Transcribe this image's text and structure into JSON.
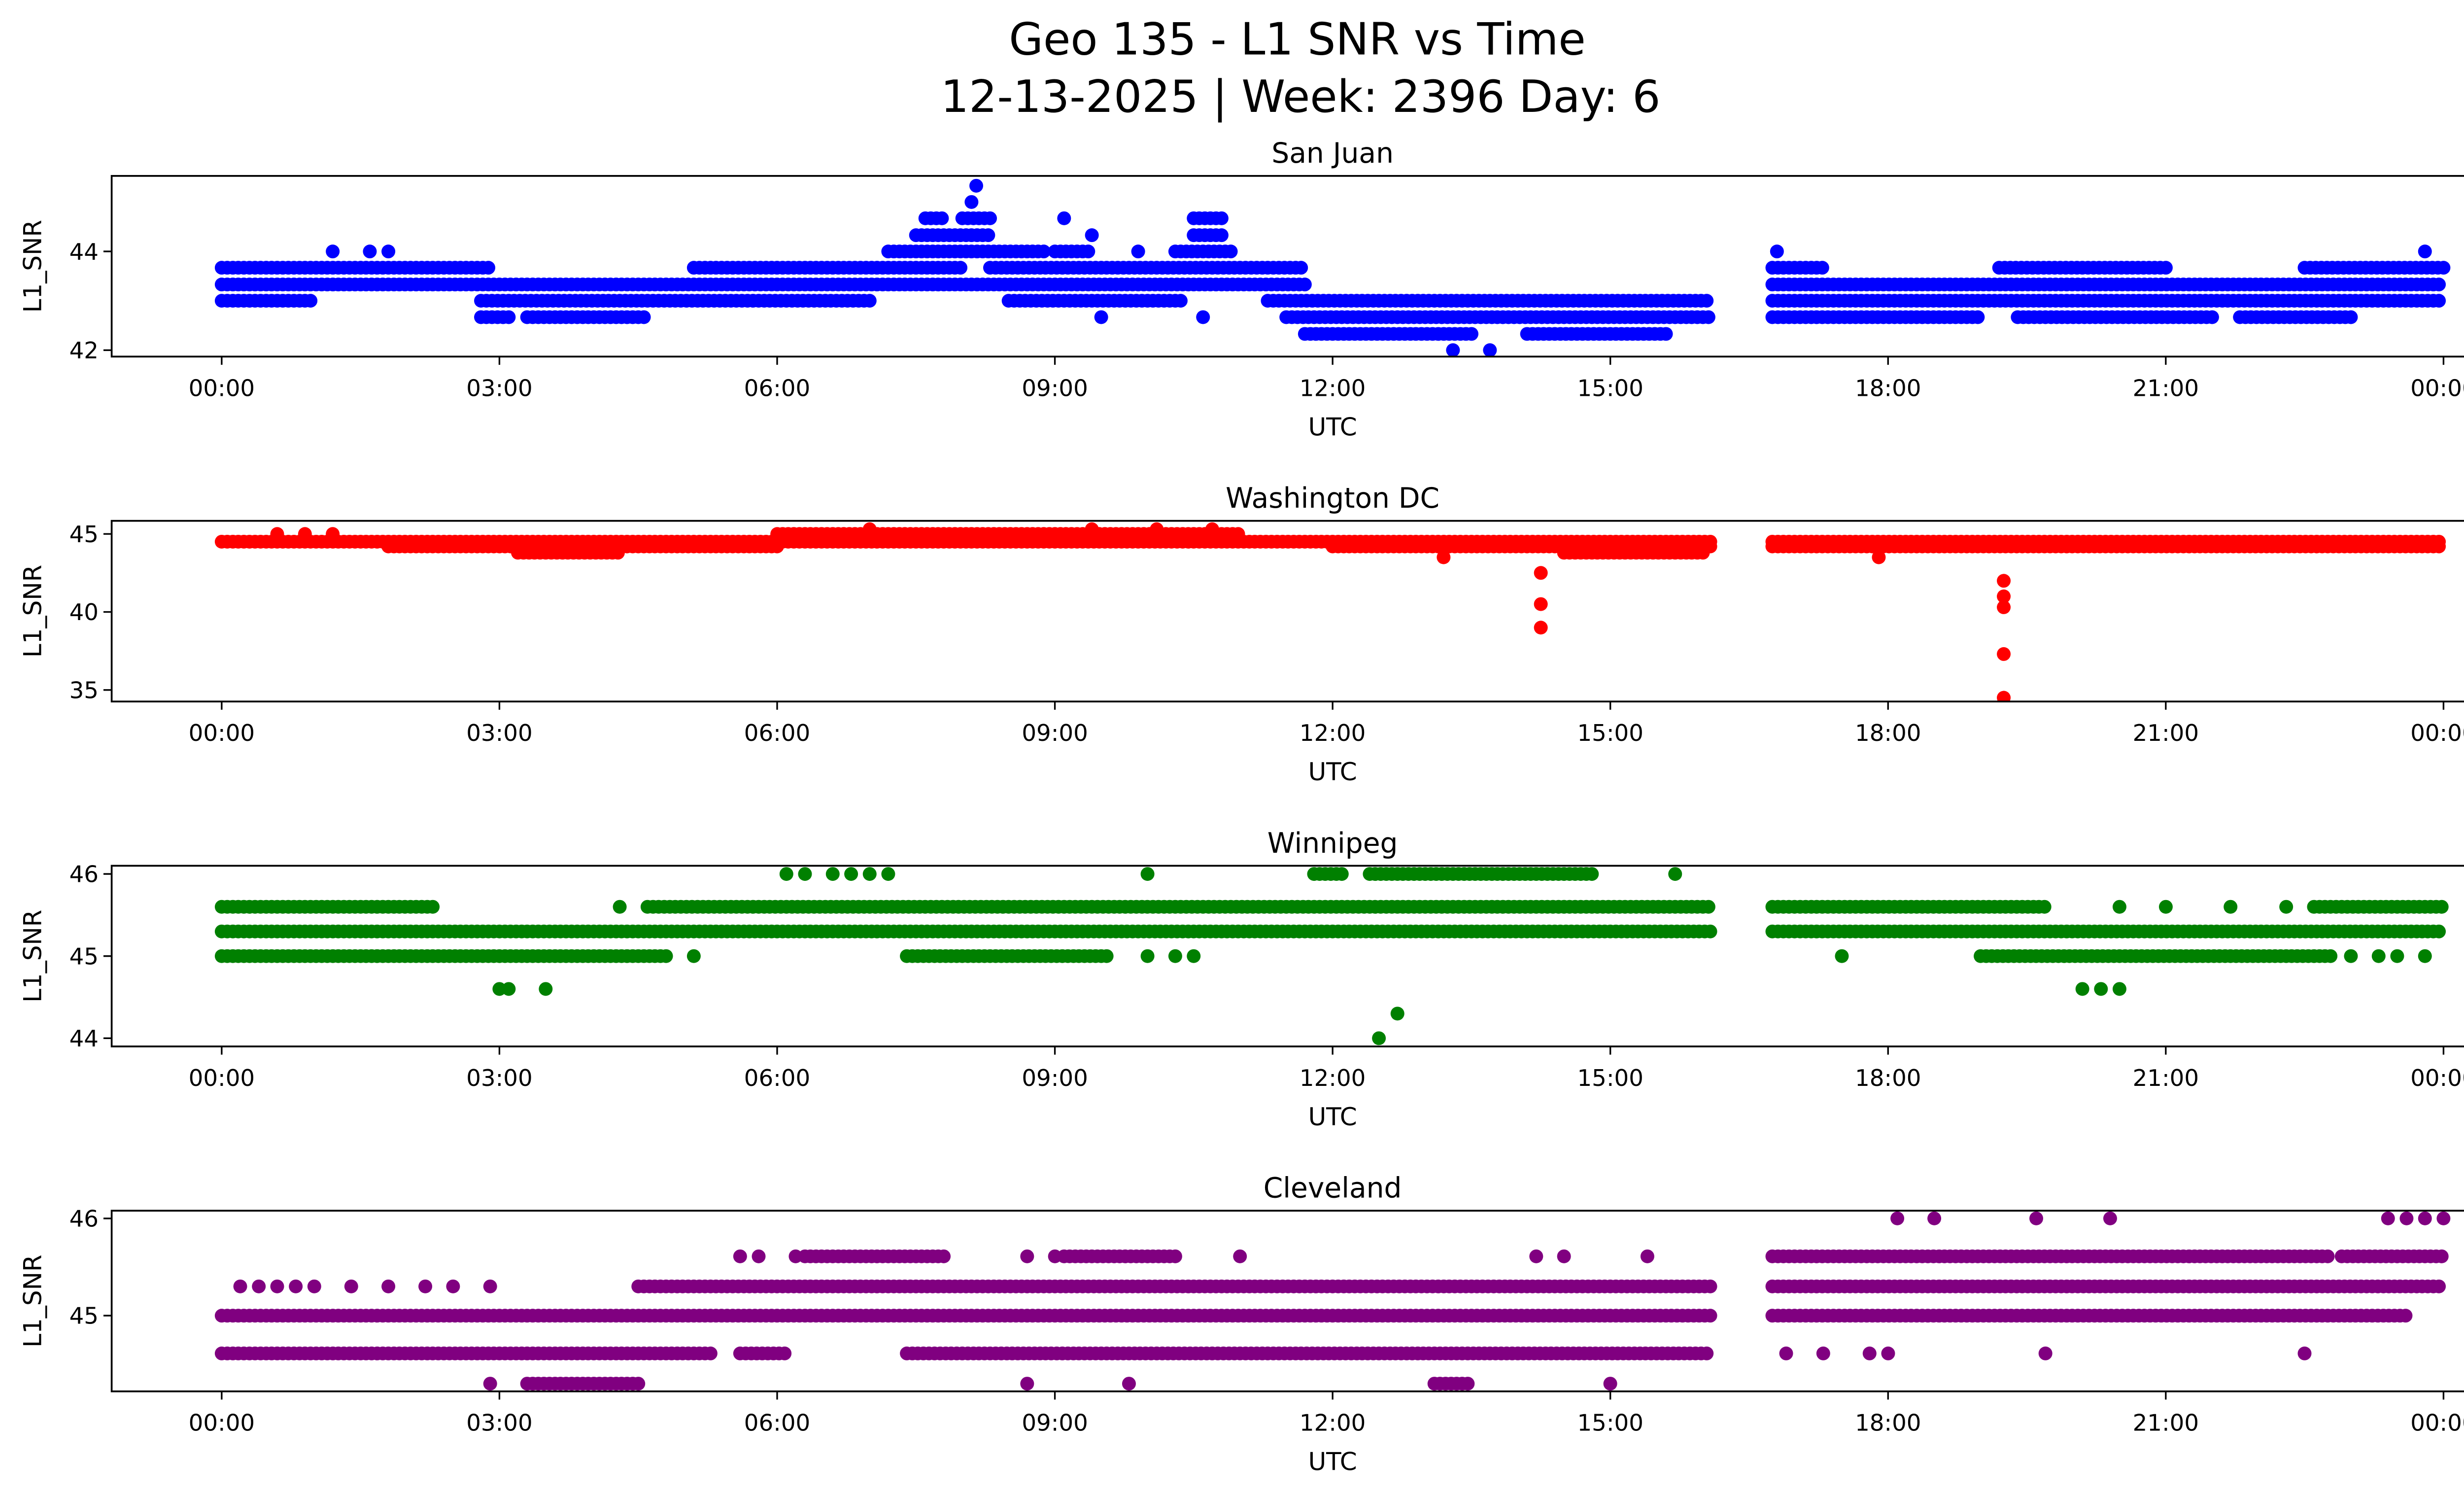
{
  "chart_data": {
    "type": "scatter",
    "title": "Geo 135 - L1 SNR vs Time",
    "subtitle": "12-13-2025 | Week: 2396 Day: 6",
    "x_ticks": [
      "00:00",
      "03:00",
      "06:00",
      "09:00",
      "12:00",
      "15:00",
      "18:00",
      "21:00",
      "00:00"
    ],
    "x_tick_hours": [
      0,
      3,
      6,
      9,
      12,
      15,
      18,
      21,
      24
    ],
    "xlim_hours": [
      -1.2,
      25.2
    ],
    "panels": [
      {
        "name": "San Juan",
        "xlabel": "UTC",
        "ylabel": "L1_SNR",
        "color": "#0000ff",
        "ylim": [
          41.87,
          45.53
        ],
        "yticks": [
          42,
          44
        ],
        "bands": [
          {
            "y": 43.67,
            "ranges": [
              [
                0,
                2.9
              ],
              [
                5.1,
                8.0
              ],
              [
                8.3,
                11.7
              ],
              [
                16.75,
                17.3
              ],
              [
                19.2,
                21
              ],
              [
                22.5,
                24
              ]
            ]
          },
          {
            "y": 43.33,
            "ranges": [
              [
                0,
                11.7
              ],
              [
                16.75,
                24
              ]
            ]
          },
          {
            "y": 43.0,
            "ranges": [
              [
                0,
                1.0
              ],
              [
                2.8,
                7.0
              ],
              [
                8.5,
                10.4
              ],
              [
                11.3,
                16.08
              ],
              [
                16.75,
                24
              ]
            ]
          },
          {
            "y": 42.67,
            "ranges": [
              [
                2.8,
                3.1
              ],
              [
                3.3,
                4.6
              ],
              [
                11.5,
                16.08
              ],
              [
                16.75,
                19
              ],
              [
                19.4,
                21.5
              ],
              [
                21.8,
                23
              ]
            ]
          },
          {
            "y": 42.33,
            "ranges": [
              [
                11.7,
                13.5
              ],
              [
                14.1,
                15.6
              ]
            ]
          },
          {
            "y": 44.0,
            "ranges": [
              [
                7.2,
                8.9
              ],
              [
                9.0,
                9.4
              ],
              [
                10.3,
                10.9
              ]
            ]
          },
          {
            "y": 44.33,
            "ranges": [
              [
                7.5,
                8.3
              ],
              [
                10.5,
                10.8
              ]
            ]
          },
          {
            "y": 44.67,
            "ranges": [
              [
                7.6,
                7.8
              ],
              [
                8.0,
                8.3
              ],
              [
                10.5,
                10.8
              ]
            ]
          }
        ],
        "points": [
          [
            1.2,
            44
          ],
          [
            1.6,
            44
          ],
          [
            1.8,
            44
          ],
          [
            9.9,
            44
          ],
          [
            9.4,
            44.33
          ],
          [
            9.1,
            44.67
          ],
          [
            8.1,
            45
          ],
          [
            8.15,
            45.33
          ],
          [
            13.3,
            42
          ],
          [
            13.7,
            42
          ],
          [
            16.8,
            44
          ],
          [
            23.8,
            44
          ],
          [
            9.5,
            42.67
          ],
          [
            10.6,
            42.67
          ]
        ]
      },
      {
        "name": "Washington DC",
        "xlabel": "UTC",
        "ylabel": "L1_SNR",
        "color": "#ff0000",
        "ylim": [
          34.26,
          45.84
        ],
        "yticks": [
          35,
          40,
          45
        ],
        "bands": [
          {
            "y": 44.5,
            "ranges": [
              [
                0,
                16.08
              ],
              [
                16.75,
                24
              ]
            ]
          },
          {
            "y": 44.2,
            "ranges": [
              [
                1.8,
                6
              ],
              [
                12,
                16.08
              ],
              [
                16.75,
                24
              ]
            ]
          },
          {
            "y": 43.8,
            "ranges": [
              [
                3.2,
                4.3
              ],
              [
                14.5,
                16
              ]
            ]
          },
          {
            "y": 45.0,
            "ranges": [
              [
                6,
                11
              ]
            ]
          }
        ],
        "points": [
          [
            0.6,
            45
          ],
          [
            0.9,
            45
          ],
          [
            1.2,
            45
          ],
          [
            7.0,
            45.3
          ],
          [
            9.4,
            45.3
          ],
          [
            10.1,
            45.3
          ],
          [
            10.7,
            45.3
          ],
          [
            14.25,
            42.5
          ],
          [
            14.25,
            40.5
          ],
          [
            14.25,
            39
          ],
          [
            19.25,
            42
          ],
          [
            19.25,
            41
          ],
          [
            19.25,
            40.3
          ],
          [
            19.25,
            37.3
          ],
          [
            19.25,
            34.5
          ],
          [
            13.2,
            43.5
          ],
          [
            17.9,
            43.5
          ]
        ]
      },
      {
        "name": "Winnipeg",
        "xlabel": "UTC",
        "ylabel": "L1_SNR",
        "color": "#008000",
        "ylim": [
          43.9,
          46.1
        ],
        "yticks": [
          44,
          45,
          46
        ],
        "bands": [
          {
            "y": 45.6,
            "ranges": [
              [
                0,
                2.3
              ],
              [
                4.6,
                16.08
              ],
              [
                16.75,
                19.7
              ],
              [
                22.6,
                24
              ]
            ]
          },
          {
            "y": 45.3,
            "ranges": [
              [
                0,
                16.08
              ],
              [
                16.75,
                24
              ]
            ]
          },
          {
            "y": 45.0,
            "ranges": [
              [
                0,
                4.8
              ],
              [
                7.4,
                9.6
              ],
              [
                19,
                22.8
              ]
            ]
          },
          {
            "y": 46.0,
            "ranges": [
              [
                11.8,
                12.1
              ],
              [
                12.4,
                14.8
              ]
            ]
          }
        ],
        "points": [
          [
            3.0,
            44.6
          ],
          [
            3.1,
            44.6
          ],
          [
            3.5,
            44.6
          ],
          [
            20.1,
            44.6
          ],
          [
            20.3,
            44.6
          ],
          [
            20.5,
            44.6
          ],
          [
            12.5,
            44
          ],
          [
            12.7,
            44.3
          ],
          [
            6.1,
            46
          ],
          [
            6.3,
            46
          ],
          [
            6.6,
            46
          ],
          [
            6.8,
            46
          ],
          [
            7.0,
            46
          ],
          [
            7.2,
            46
          ],
          [
            10.0,
            46
          ],
          [
            15.7,
            46
          ],
          [
            20.5,
            45.6
          ],
          [
            21.0,
            45.6
          ],
          [
            21.7,
            45.6
          ],
          [
            22.3,
            45.6
          ],
          [
            4.3,
            45.6
          ],
          [
            5.1,
            45
          ],
          [
            10.0,
            45
          ],
          [
            10.3,
            45
          ],
          [
            10.5,
            45
          ],
          [
            17.5,
            45
          ],
          [
            23.0,
            45
          ],
          [
            23.3,
            45
          ],
          [
            23.5,
            45
          ],
          [
            23.8,
            45
          ]
        ]
      },
      {
        "name": "Cleveland",
        "xlabel": "UTC",
        "ylabel": "L1_SNR",
        "color": "#800080",
        "ylim": [
          44.22,
          46.08
        ],
        "yticks": [
          45,
          46
        ],
        "bands": [
          {
            "y": 45.0,
            "ranges": [
              [
                0,
                16.08
              ],
              [
                16.75,
                23.6
              ]
            ]
          },
          {
            "y": 44.61,
            "ranges": [
              [
                0,
                5.3
              ],
              [
                5.6,
                6.1
              ],
              [
                7.4,
                16.08
              ]
            ]
          },
          {
            "y": 45.3,
            "ranges": [
              [
                4.5,
                16.08
              ],
              [
                16.75,
                24
              ]
            ]
          },
          {
            "y": 45.61,
            "ranges": [
              [
                6.3,
                7.8
              ],
              [
                9.1,
                10.3
              ],
              [
                16.75,
                22.8
              ],
              [
                22.9,
                24
              ]
            ]
          },
          {
            "y": 44.3,
            "ranges": [
              [
                3.3,
                4.5
              ],
              [
                13.1,
                13.5
              ]
            ]
          }
        ],
        "points": [
          [
            0.2,
            45.3
          ],
          [
            0.4,
            45.3
          ],
          [
            0.6,
            45.3
          ],
          [
            0.8,
            45.3
          ],
          [
            1.0,
            45.3
          ],
          [
            1.4,
            45.3
          ],
          [
            1.8,
            45.3
          ],
          [
            2.2,
            45.3
          ],
          [
            2.5,
            45.3
          ],
          [
            2.9,
            45.3
          ],
          [
            18.1,
            46
          ],
          [
            18.5,
            46
          ],
          [
            19.6,
            46
          ],
          [
            20.4,
            46
          ],
          [
            23.4,
            46
          ],
          [
            23.6,
            46
          ],
          [
            23.8,
            46
          ],
          [
            24,
            46
          ],
          [
            5.6,
            45.61
          ],
          [
            5.8,
            45.61
          ],
          [
            6.2,
            45.61
          ],
          [
            8.7,
            45.61
          ],
          [
            9.0,
            45.61
          ],
          [
            11.0,
            45.61
          ],
          [
            14.2,
            45.61
          ],
          [
            14.5,
            45.61
          ],
          [
            15.4,
            45.61
          ],
          [
            2.9,
            44.3
          ],
          [
            8.7,
            44.3
          ],
          [
            9.8,
            44.3
          ],
          [
            15.0,
            44.3
          ],
          [
            16.9,
            44.61
          ],
          [
            17.3,
            44.61
          ],
          [
            17.8,
            44.61
          ],
          [
            18.0,
            44.61
          ],
          [
            19.7,
            44.61
          ],
          [
            22.5,
            44.61
          ]
        ]
      }
    ]
  }
}
